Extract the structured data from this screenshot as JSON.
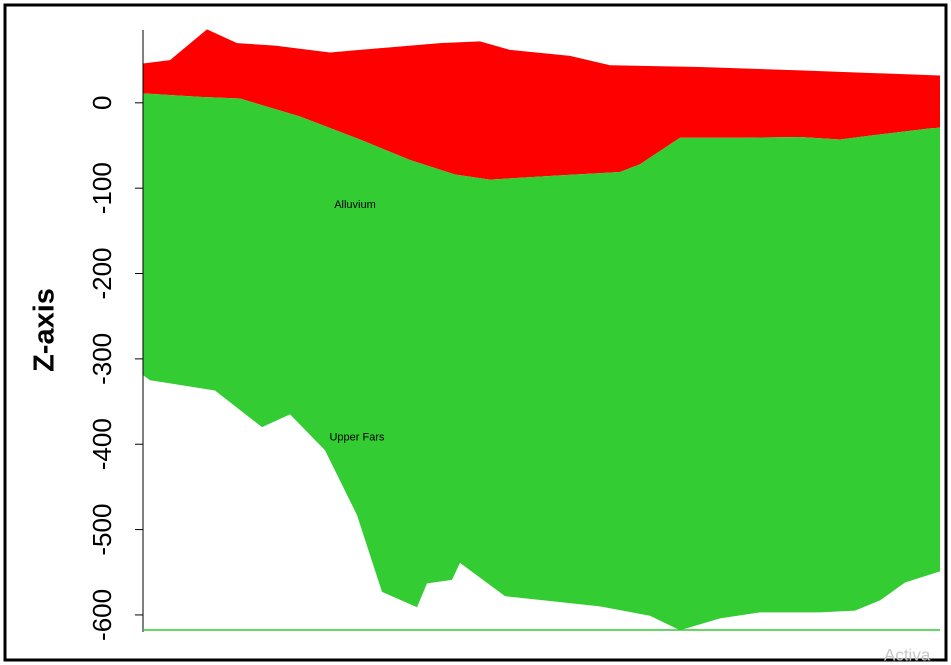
{
  "chart_data": {
    "type": "area",
    "y_label": "Z-axis",
    "ylim": [
      -620,
      90
    ],
    "yticks": [
      0,
      -100,
      -200,
      -300,
      -400,
      -500,
      -600
    ],
    "xlim": [
      0,
      797
    ],
    "surfaces": [
      {
        "x": [
          0,
          27,
          64,
          94,
          132,
          187,
          227,
          297,
          337,
          367,
          427,
          467,
          557,
          657,
          727,
          797
        ],
        "values": [
          46,
          50,
          86,
          70,
          67,
          59,
          63,
          70,
          72,
          62,
          55,
          44,
          42,
          38,
          35,
          32
        ]
      },
      {
        "x": [
          0,
          57,
          97,
          157,
          217,
          267,
          312,
          347,
          417,
          477,
          497,
          537,
          597,
          657,
          697,
          737,
          787,
          797
        ],
        "values": [
          11,
          7,
          5,
          -16,
          -43,
          -67,
          -84,
          -90,
          -85,
          -81,
          -72,
          -41,
          -41,
          -40,
          -43,
          -37,
          -30,
          -29
        ]
      },
      {
        "x": [
          0,
          7,
          72,
          119,
          147,
          182,
          214,
          239,
          274,
          284,
          309,
          317,
          362,
          457,
          507,
          537,
          577,
          617,
          677,
          712,
          737,
          762,
          797
        ],
        "values": [
          -319,
          -325,
          -337,
          -380,
          -365,
          -407,
          -483,
          -573,
          -591,
          -563,
          -559,
          -539,
          -578,
          -590,
          -601,
          -618,
          -604,
          -597,
          -597,
          -595,
          -583,
          -562,
          -549
        ]
      }
    ],
    "fills": [
      {
        "color": "#ff0000"
      },
      {
        "color": "#33cc33"
      }
    ],
    "annotations": [
      {
        "text": "Alluvium",
        "x": 212,
        "y": -120
      },
      {
        "text": "Upper Fars",
        "x": 214,
        "y": -392
      }
    ],
    "watermark": "Activa"
  }
}
